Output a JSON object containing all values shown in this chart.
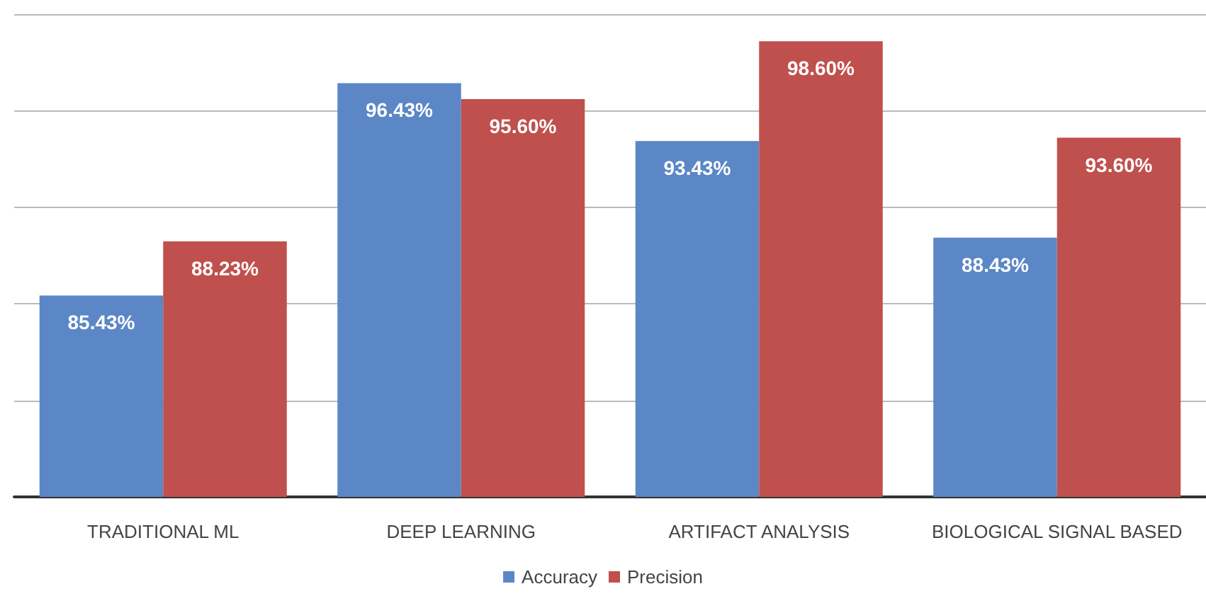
{
  "chart_data": {
    "type": "bar",
    "categories": [
      "TRADITIONAL ML",
      "DEEP LEARNING",
      "ARTIFACT ANALYSIS",
      "BIOLOGICAL SIGNAL BASED"
    ],
    "series": [
      {
        "name": "Accuracy",
        "color": "#5b87c6",
        "values": [
          85.43,
          96.43,
          93.43,
          88.43
        ],
        "value_labels": [
          "85.43%",
          "96.43%",
          "93.43%",
          "88.43%"
        ]
      },
      {
        "name": "Precision",
        "color": "#c0504d",
        "values": [
          88.23,
          95.6,
          98.6,
          93.6
        ],
        "value_labels": [
          "88.23%",
          "95.60%",
          "98.60%",
          "93.60%"
        ]
      }
    ],
    "ylim": [
      75,
      100
    ],
    "yticks": [
      {
        "value": 75,
        "label": null
      },
      {
        "value": 80,
        "label": null
      },
      {
        "value": 85,
        "label": null
      },
      {
        "value": 90,
        "label": null
      },
      {
        "value": 95,
        "label": null
      },
      {
        "value": 100,
        "label": null
      }
    ],
    "grid": "y",
    "legend": "bottom",
    "tick_labels": "x"
  }
}
